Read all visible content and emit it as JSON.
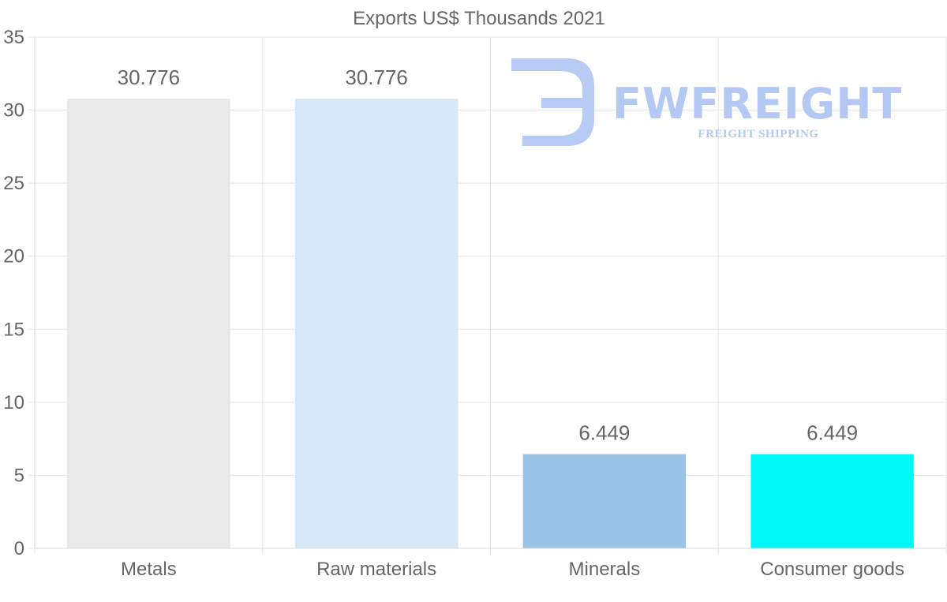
{
  "chart_data": {
    "type": "bar",
    "title": "Exports US$ Thousands 2021",
    "categories": [
      "Metals",
      "Raw materials",
      "Minerals",
      "Consumer goods"
    ],
    "values": [
      30.776,
      30.776,
      6.449,
      6.449
    ],
    "value_labels": [
      "30.776",
      "30.776",
      "6.449",
      "6.449"
    ],
    "colors": [
      "#e8e8e8",
      "#d6e7f8",
      "#9bc3e6",
      "#00f7f7"
    ],
    "xlabel": "",
    "ylabel": "",
    "ylim": [
      0,
      35
    ],
    "yticks": [
      0,
      5,
      10,
      15,
      20,
      25,
      30,
      35
    ],
    "grid": true
  },
  "watermark": {
    "brand": "FWFREIGHT",
    "tagline": "FREIGHT SHIPPING",
    "color": "#b3c8f3"
  }
}
